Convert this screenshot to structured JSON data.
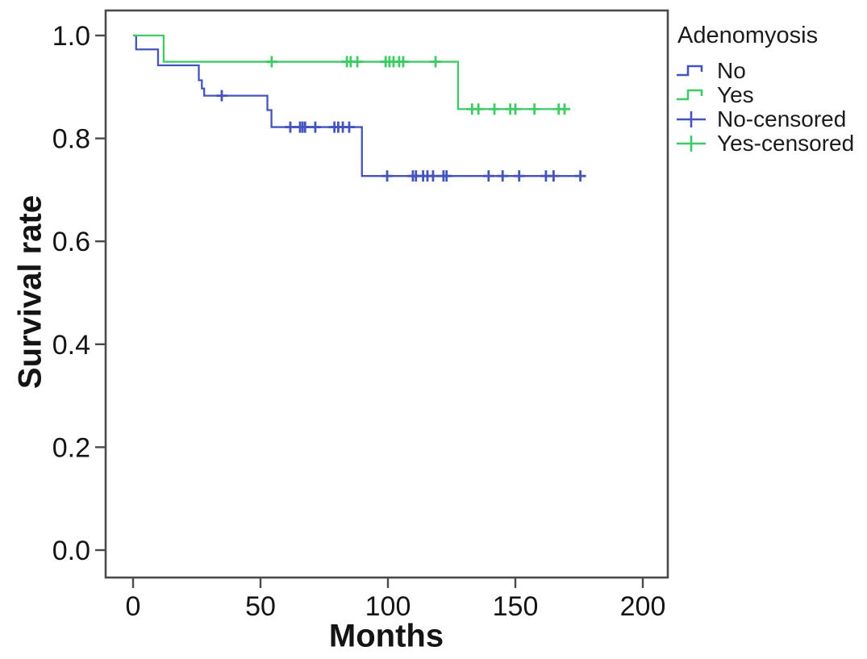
{
  "figure": {
    "background": "#ffffff",
    "axis_color": "#4a4a4a",
    "text_color": "#141414"
  },
  "chart_data": {
    "type": "line",
    "subtype": "kaplan-meier-step",
    "title": "",
    "xlabel": "Months",
    "ylabel": "Survival rate",
    "xlim": [
      -11,
      210
    ],
    "ylim": [
      -0.05,
      1.05
    ],
    "xticks": [
      0,
      50,
      100,
      150,
      200
    ],
    "ytick_labels": [
      "0.0",
      "0.2",
      "0.4",
      "0.6",
      "0.8",
      "1.0"
    ],
    "ytick_values": [
      0.0,
      0.2,
      0.4,
      0.6,
      0.8,
      1.0
    ],
    "grid": false,
    "legend_position": "right-outside",
    "series": [
      {
        "name": "No",
        "color": "#4554bd",
        "steps": [
          {
            "t": 0,
            "s": 1.0
          },
          {
            "t": 1.2,
            "s": 0.973
          },
          {
            "t": 9.8,
            "s": 0.942
          },
          {
            "t": 25.8,
            "s": 0.913
          },
          {
            "t": 27.0,
            "s": 0.897
          },
          {
            "t": 27.9,
            "s": 0.883
          },
          {
            "t": 52.7,
            "s": 0.855
          },
          {
            "t": 54.3,
            "s": 0.822
          },
          {
            "t": 89.8,
            "s": 0.727
          }
        ],
        "end_t": 177,
        "censored_t": [
          34.8,
          61.7,
          65.5,
          66.5,
          67.5,
          71.5,
          79.0,
          80.5,
          82.3,
          84.8,
          99.7,
          109.8,
          111.0,
          113.8,
          115.5,
          117.7,
          121.8,
          123.0,
          139.5,
          145.0,
          151.5,
          162.0,
          165.0,
          175.5
        ]
      },
      {
        "name": "Yes",
        "color": "#3ecb63",
        "steps": [
          {
            "t": 0,
            "s": 1.0
          },
          {
            "t": 12,
            "s": 0.949
          },
          {
            "t": 127.5,
            "s": 0.857
          }
        ],
        "end_t": 171.5,
        "censored_t": [
          54.4,
          83.9,
          85.4,
          88.0,
          99.1,
          100.6,
          102.2,
          104.4,
          106.0,
          118.7,
          133.0,
          135.5,
          141.8,
          148.0,
          150.0,
          157.5,
          167.0,
          169.3
        ]
      }
    ]
  },
  "legend": {
    "title": "Adenomyosis",
    "items": [
      {
        "label": "No",
        "color": "#4554bd",
        "key": "step-line"
      },
      {
        "label": "Yes",
        "color": "#3ecb63",
        "key": "step-line"
      },
      {
        "label": "No-censored",
        "color": "#4554bd",
        "key": "plus"
      },
      {
        "label": "Yes-censored",
        "color": "#3ecb63",
        "key": "plus"
      }
    ]
  }
}
